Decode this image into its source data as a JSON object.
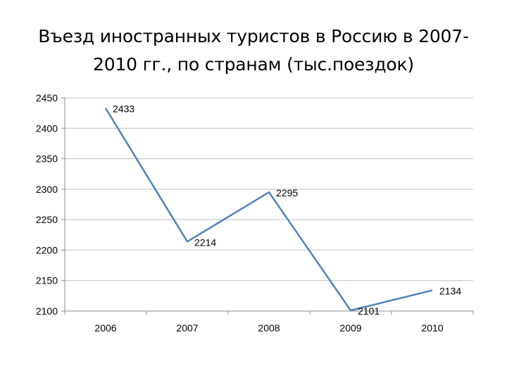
{
  "title_lines": [
    "Въезд иностранных туристов в Россию в 2007-",
    "2010 гг., по странам (тыс.поездок)"
  ],
  "colors": {
    "line": "#4f81bd",
    "grid": "#bfbfbf",
    "axis": "#8c8c8c"
  },
  "chart_data": {
    "type": "line",
    "title": "Въезд иностранных туристов в Россию в 2007-2010 гг., по странам (тыс.поездок)",
    "categories": [
      "2006",
      "2007",
      "2008",
      "2009",
      "2010"
    ],
    "values": [
      2433,
      2214,
      2295,
      2101,
      2134
    ],
    "data_labels": [
      "2433",
      "2214",
      "2295",
      "2101",
      "2134"
    ],
    "ylim": [
      2100,
      2450
    ],
    "yticks": [
      2100,
      2150,
      2200,
      2250,
      2300,
      2350,
      2400,
      2450
    ],
    "ytick_labels": [
      "2100",
      "2150",
      "2200",
      "2250",
      "2300",
      "2350",
      "2400",
      "2450"
    ],
    "grid": true,
    "legend": "none"
  }
}
